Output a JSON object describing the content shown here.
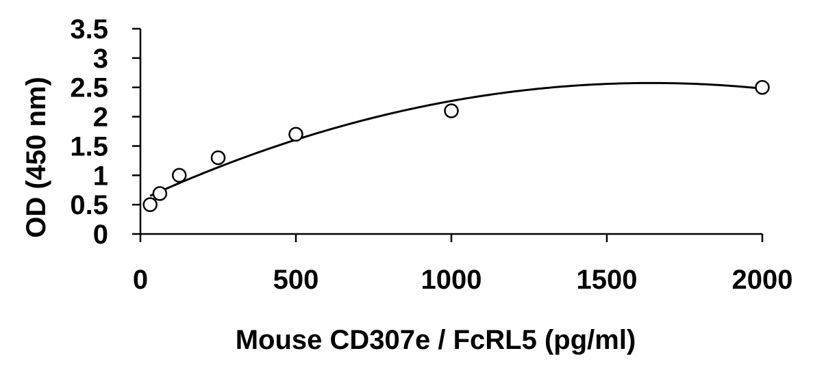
{
  "chart_data": {
    "type": "scatter",
    "title": "",
    "xlabel": "Mouse CD307e / FcRL5 (pg/ml)",
    "ylabel": "OD (450 nm)",
    "xlim": [
      0,
      2000
    ],
    "ylim": [
      0,
      3.5
    ],
    "x_ticks": [
      0,
      500,
      1000,
      1500,
      2000
    ],
    "x_tick_labels": [
      "0",
      "500",
      "1000",
      "1500",
      "2000"
    ],
    "y_ticks": [
      0,
      0.5,
      1,
      1.5,
      2,
      2.5,
      3,
      3.5
    ],
    "y_tick_labels": [
      "0",
      "0.5",
      "1",
      "1.5",
      "2",
      "2.5",
      "3",
      "3.5"
    ],
    "grid": false,
    "legend": "none",
    "series": [
      {
        "marker": "open-circle",
        "color": "#000000",
        "points": [
          {
            "x": 31.25,
            "y": 0.5
          },
          {
            "x": 62.5,
            "y": 0.69
          },
          {
            "x": 125,
            "y": 1.0
          },
          {
            "x": 250,
            "y": 1.3
          },
          {
            "x": 500,
            "y": 1.7
          },
          {
            "x": 1000,
            "y": 2.1
          },
          {
            "x": 2000,
            "y": 2.5
          }
        ]
      }
    ],
    "fit_curve": {
      "type": "polynomial-2",
      "color": "#000000",
      "x_range": [
        31.25,
        2000
      ],
      "points": [
        {
          "x": 31.25,
          "y": 0.65
        },
        {
          "x": 1000,
          "y": 2.268
        },
        {
          "x": 2000,
          "y": 2.48
        }
      ]
    }
  }
}
